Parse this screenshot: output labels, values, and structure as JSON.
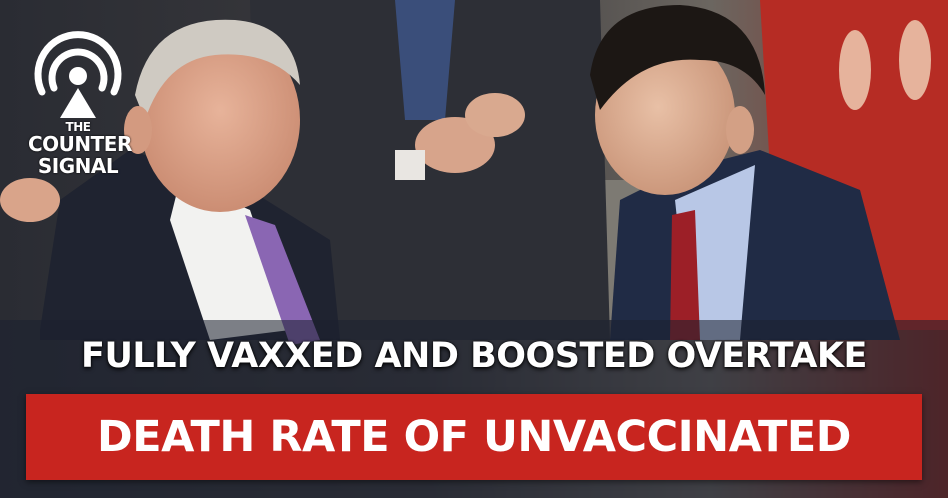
{
  "logo": {
    "line1": "THE",
    "line2": "COUNTER",
    "line3": "SIGNAL"
  },
  "headline": {
    "top": "FULLY VAXXED AND BOOSTED OVERTAKE",
    "bottom": "DEATH RATE OF UNVACCINATED"
  },
  "colors": {
    "banner": "#c8251f",
    "text": "#ffffff",
    "logo": "#ffffff"
  }
}
